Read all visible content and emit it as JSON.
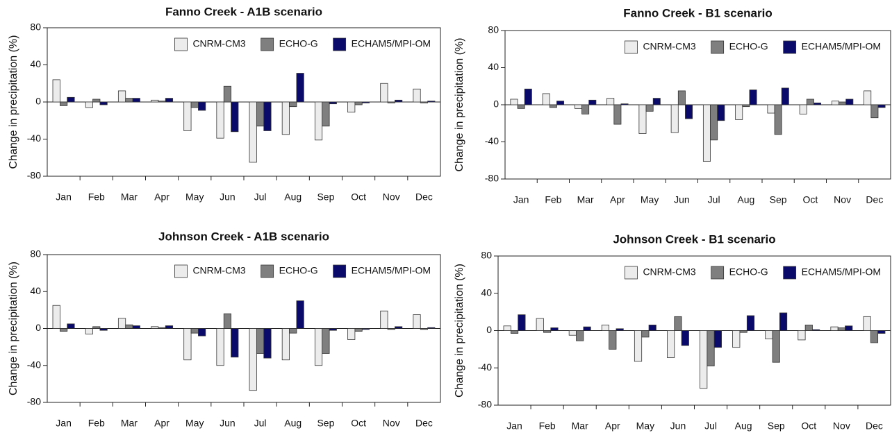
{
  "chart_data": [
    {
      "type": "bar",
      "title": "Fanno Creek - A1B scenario",
      "ylabel": "Change in precipitation (%)",
      "categories": [
        "Jan",
        "Feb",
        "Mar",
        "Apr",
        "May",
        "Jun",
        "Jul",
        "Aug",
        "Sep",
        "Oct",
        "Nov",
        "Dec"
      ],
      "series": [
        {
          "name": "CNRM-CM3",
          "color": "#ececec",
          "values": [
            24,
            -6,
            12,
            2,
            -31,
            -39,
            -65,
            -35,
            -41,
            -11,
            20,
            14
          ]
        },
        {
          "name": "ECHO-G",
          "color": "#7f7f7f",
          "values": [
            -4,
            3,
            4,
            1,
            -6,
            17,
            -26,
            -5,
            -26,
            -3,
            -1,
            -1
          ]
        },
        {
          "name": "ECHAM5/MPI-OM",
          "color": "#0a0a6a",
          "values": [
            5,
            -3,
            4,
            4,
            -9,
            -32,
            -31,
            31,
            -2,
            -1,
            2,
            1
          ]
        }
      ],
      "ylim": [
        -80,
        80
      ],
      "yticks": [
        -80,
        -40,
        0,
        40,
        80
      ]
    },
    {
      "type": "bar",
      "title": "Fanno Creek - B1 scenario",
      "ylabel": "Change in precipitation (%)",
      "categories": [
        "Jan",
        "Feb",
        "Mar",
        "Apr",
        "May",
        "Jun",
        "Jul",
        "Aug",
        "Sep",
        "Oct",
        "Nov",
        "Dec"
      ],
      "series": [
        {
          "name": "CNRM-CM3",
          "color": "#ececec",
          "values": [
            6,
            12,
            -4,
            7,
            -31,
            -30,
            -61,
            -16,
            -9,
            -10,
            4,
            15
          ]
        },
        {
          "name": "ECHO-G",
          "color": "#7f7f7f",
          "values": [
            -4,
            -3,
            -10,
            -21,
            -7,
            15,
            -38,
            -2,
            -32,
            6,
            3,
            -14
          ]
        },
        {
          "name": "ECHAM5/MPI-OM",
          "color": "#0a0a6a",
          "values": [
            17,
            4,
            5,
            1,
            7,
            -15,
            -17,
            16,
            18,
            2,
            6,
            -3
          ]
        }
      ],
      "ylim": [
        -80,
        80
      ],
      "yticks": [
        -80,
        -40,
        0,
        40,
        80
      ]
    },
    {
      "type": "bar",
      "title": "Johnson Creek - A1B scenario",
      "ylabel": "Change in precipitation (%)",
      "categories": [
        "Jan",
        "Feb",
        "Mar",
        "Apr",
        "May",
        "Jun",
        "Jul",
        "Aug",
        "Sep",
        "Oct",
        "Nov",
        "Dec"
      ],
      "series": [
        {
          "name": "CNRM-CM3",
          "color": "#ececec",
          "values": [
            25,
            -6,
            11,
            2,
            -34,
            -40,
            -67,
            -34,
            -40,
            -12,
            19,
            15
          ]
        },
        {
          "name": "ECHO-G",
          "color": "#7f7f7f",
          "values": [
            -3,
            2,
            4,
            1,
            -5,
            16,
            -27,
            -5,
            -27,
            -3,
            -1,
            -1
          ]
        },
        {
          "name": "ECHAM5/MPI-OM",
          "color": "#0a0a6a",
          "values": [
            5,
            -2,
            3,
            3,
            -8,
            -31,
            -32,
            30,
            -2,
            -1,
            2,
            1
          ]
        }
      ],
      "ylim": [
        -80,
        80
      ],
      "yticks": [
        -80,
        -40,
        0,
        40,
        80
      ]
    },
    {
      "type": "bar",
      "title": "Johnson Creek - B1 scenario",
      "ylabel": "Change in precipitation (%)",
      "categories": [
        "Jan",
        "Feb",
        "Mar",
        "Apr",
        "May",
        "Jun",
        "Jul",
        "Aug",
        "Sep",
        "Oct",
        "Nov",
        "Dec"
      ],
      "series": [
        {
          "name": "CNRM-CM3",
          "color": "#ececec",
          "values": [
            5,
            13,
            -5,
            6,
            -33,
            -29,
            -62,
            -18,
            -9,
            -10,
            4,
            15
          ]
        },
        {
          "name": "ECHO-G",
          "color": "#7f7f7f",
          "values": [
            -3,
            -2,
            -11,
            -20,
            -7,
            15,
            -38,
            -2,
            -34,
            6,
            3,
            -13
          ]
        },
        {
          "name": "ECHAM5/MPI-OM",
          "color": "#0a0a6a",
          "values": [
            17,
            3,
            4,
            2,
            6,
            -16,
            -18,
            16,
            19,
            1,
            5,
            -3
          ]
        }
      ],
      "ylim": [
        -80,
        80
      ],
      "yticks": [
        -80,
        -40,
        0,
        40,
        80
      ]
    }
  ]
}
